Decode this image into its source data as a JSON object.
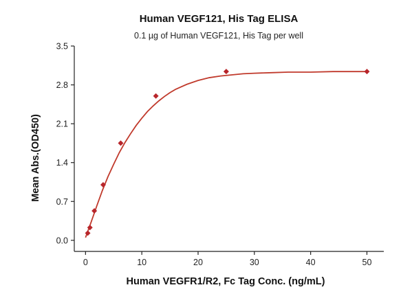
{
  "chart_data": {
    "type": "scatter",
    "title": "Human VEGF121, His Tag ELISA",
    "subtitle": "0.1 µg of Human VEGF121, His Tag per well",
    "xlabel": "Human VEGFR1/R2, Fc Tag Conc. (ng/mL)",
    "ylabel": "Mean Abs.(OD450)",
    "xlim": [
      -2,
      53
    ],
    "ylim": [
      -0.2,
      3.5
    ],
    "xticks": [
      0,
      10,
      20,
      30,
      40,
      50
    ],
    "xtick_labels": [
      "0",
      "10",
      "20",
      "30",
      "40",
      "50"
    ],
    "yticks": [
      0.0,
      0.7,
      1.4,
      2.1,
      2.8,
      3.5
    ],
    "ytick_labels": [
      "0.0",
      "0.7",
      "1.4",
      "2.1",
      "2.8",
      "3.5"
    ],
    "grid": false,
    "marker_color": "#b8262b",
    "curve_color": "#c0392b",
    "series": [
      {
        "x": [
          0.39,
          0.78,
          1.56,
          3.13,
          6.25,
          12.5,
          25,
          50
        ],
        "y": [
          0.13,
          0.23,
          0.53,
          1.0,
          1.75,
          2.6,
          3.04,
          3.04
        ]
      }
    ],
    "fit_curve": {
      "x": [
        0,
        1,
        2,
        3,
        4,
        5,
        6,
        7,
        8,
        9,
        10,
        11,
        12,
        13,
        14,
        15,
        16,
        18,
        20,
        22,
        24,
        26,
        28,
        30,
        33,
        36,
        40,
        44,
        48,
        50
      ],
      "y": [
        0.05,
        0.33,
        0.62,
        0.9,
        1.15,
        1.37,
        1.58,
        1.76,
        1.92,
        2.07,
        2.2,
        2.32,
        2.42,
        2.51,
        2.59,
        2.66,
        2.72,
        2.81,
        2.88,
        2.93,
        2.96,
        2.98,
        3.0,
        3.01,
        3.02,
        3.03,
        3.03,
        3.04,
        3.04,
        3.04
      ]
    }
  }
}
